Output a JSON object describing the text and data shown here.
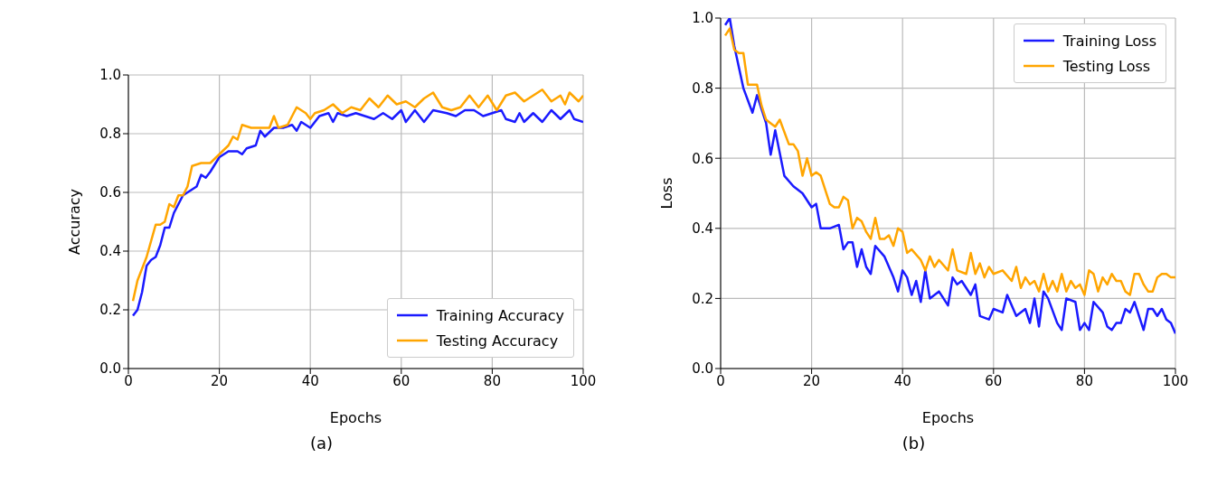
{
  "chart_data": [
    {
      "type": "line",
      "xlabel": "Epochs",
      "ylabel": "Accuracy",
      "xlim": [
        0,
        100
      ],
      "xticks": [
        0,
        20,
        40,
        60,
        80,
        100
      ],
      "ylim": [
        0,
        1
      ],
      "yticks": [
        {
          "value": 0,
          "label": "0.0"
        },
        {
          "value": 0.2,
          "label": "0.2"
        },
        {
          "value": 0.4,
          "label": "0.4"
        },
        {
          "value": 0.6,
          "label": "0.6"
        },
        {
          "value": 0.8,
          "label": "0.8"
        },
        {
          "value": 1,
          "label": "1.0"
        }
      ],
      "grid": true,
      "legend": "bottom right",
      "annotations": [
        "(a)"
      ],
      "series": [
        {
          "name": "Training Accuracy",
          "color": "#1a1aff",
          "x": [
            1,
            2,
            3,
            4,
            5,
            6,
            7,
            8,
            9,
            10,
            12,
            14,
            15,
            16,
            17,
            18,
            20,
            22,
            24,
            25,
            26,
            28,
            29,
            30,
            32,
            34,
            36,
            37,
            38,
            40,
            42,
            44,
            45,
            46,
            48,
            50,
            52,
            54,
            56,
            58,
            60,
            61,
            63,
            65,
            67,
            70,
            72,
            74,
            76,
            78,
            80,
            82,
            83,
            85,
            86,
            87,
            89,
            91,
            93,
            95,
            97,
            98,
            100
          ],
          "values": [
            0.18,
            0.2,
            0.26,
            0.35,
            0.37,
            0.38,
            0.42,
            0.48,
            0.48,
            0.53,
            0.59,
            0.61,
            0.62,
            0.66,
            0.65,
            0.67,
            0.72,
            0.74,
            0.74,
            0.73,
            0.75,
            0.76,
            0.81,
            0.79,
            0.82,
            0.82,
            0.83,
            0.81,
            0.84,
            0.82,
            0.86,
            0.87,
            0.84,
            0.87,
            0.86,
            0.87,
            0.86,
            0.85,
            0.87,
            0.85,
            0.88,
            0.84,
            0.88,
            0.84,
            0.88,
            0.87,
            0.86,
            0.88,
            0.88,
            0.86,
            0.87,
            0.88,
            0.85,
            0.84,
            0.87,
            0.84,
            0.87,
            0.84,
            0.88,
            0.85,
            0.88,
            0.85,
            0.84
          ]
        },
        {
          "name": "Testing Accuracy",
          "color": "#ffa500",
          "x": [
            1,
            2,
            4,
            6,
            7,
            8,
            9,
            10,
            11,
            12,
            13,
            14,
            16,
            18,
            20,
            22,
            23,
            24,
            25,
            27,
            29,
            31,
            32,
            33,
            35,
            37,
            39,
            40,
            41,
            43,
            45,
            47,
            49,
            51,
            53,
            55,
            57,
            59,
            61,
            63,
            65,
            67,
            69,
            71,
            73,
            75,
            77,
            79,
            81,
            83,
            85,
            87,
            89,
            91,
            93,
            95,
            96,
            97,
            99,
            100
          ],
          "values": [
            0.23,
            0.3,
            0.38,
            0.49,
            0.49,
            0.5,
            0.56,
            0.55,
            0.59,
            0.59,
            0.62,
            0.69,
            0.7,
            0.7,
            0.73,
            0.76,
            0.79,
            0.78,
            0.83,
            0.82,
            0.82,
            0.82,
            0.86,
            0.82,
            0.83,
            0.89,
            0.87,
            0.85,
            0.87,
            0.88,
            0.9,
            0.87,
            0.89,
            0.88,
            0.92,
            0.89,
            0.93,
            0.9,
            0.91,
            0.89,
            0.92,
            0.94,
            0.89,
            0.88,
            0.89,
            0.93,
            0.89,
            0.93,
            0.88,
            0.93,
            0.94,
            0.91,
            0.93,
            0.95,
            0.91,
            0.93,
            0.9,
            0.94,
            0.91,
            0.93
          ]
        }
      ]
    },
    {
      "type": "line",
      "xlabel": "Epochs",
      "ylabel": "Loss",
      "xlim": [
        0,
        100
      ],
      "xticks": [
        0,
        20,
        40,
        60,
        80,
        100
      ],
      "ylim": [
        0,
        1
      ],
      "yticks": [
        {
          "value": 0,
          "label": "0.0"
        },
        {
          "value": 0.2,
          "label": "0.2"
        },
        {
          "value": 0.4,
          "label": "0.4"
        },
        {
          "value": 0.6,
          "label": "0.6"
        },
        {
          "value": 0.8,
          "label": "0.8"
        },
        {
          "value": 1,
          "label": "1.0"
        }
      ],
      "grid": true,
      "legend": "top right",
      "annotations": [
        "(b)"
      ],
      "series": [
        {
          "name": "Training Loss",
          "color": "#1a1aff",
          "x": [
            1,
            2,
            3,
            5,
            7,
            8,
            10,
            11,
            12,
            14,
            16,
            18,
            20,
            21,
            22,
            24,
            26,
            27,
            28,
            29,
            30,
            31,
            32,
            33,
            34,
            36,
            38,
            39,
            40,
            41,
            42,
            43,
            44,
            45,
            46,
            48,
            50,
            51,
            52,
            53,
            55,
            56,
            57,
            59,
            60,
            62,
            63,
            65,
            67,
            68,
            69,
            70,
            71,
            72,
            74,
            75,
            76,
            78,
            79,
            80,
            81,
            82,
            84,
            85,
            86,
            87,
            88,
            89,
            90,
            91,
            93,
            94,
            95,
            96,
            97,
            98,
            99,
            100
          ],
          "values": [
            0.98,
            1.0,
            0.92,
            0.8,
            0.73,
            0.78,
            0.7,
            0.61,
            0.68,
            0.55,
            0.52,
            0.5,
            0.46,
            0.47,
            0.4,
            0.4,
            0.41,
            0.34,
            0.36,
            0.36,
            0.29,
            0.34,
            0.29,
            0.27,
            0.35,
            0.32,
            0.26,
            0.22,
            0.28,
            0.26,
            0.21,
            0.25,
            0.19,
            0.28,
            0.2,
            0.22,
            0.18,
            0.26,
            0.24,
            0.25,
            0.21,
            0.24,
            0.15,
            0.14,
            0.17,
            0.16,
            0.21,
            0.15,
            0.17,
            0.13,
            0.2,
            0.12,
            0.22,
            0.2,
            0.13,
            0.11,
            0.2,
            0.19,
            0.11,
            0.13,
            0.11,
            0.19,
            0.16,
            0.12,
            0.11,
            0.13,
            0.13,
            0.17,
            0.16,
            0.19,
            0.11,
            0.17,
            0.17,
            0.15,
            0.17,
            0.14,
            0.13,
            0.1
          ]
        },
        {
          "name": "Testing Loss",
          "color": "#ffa500",
          "x": [
            1,
            2,
            3,
            4,
            5,
            6,
            8,
            9,
            10,
            11,
            12,
            13,
            15,
            16,
            17,
            18,
            19,
            20,
            21,
            22,
            24,
            25,
            26,
            27,
            28,
            29,
            30,
            31,
            32,
            33,
            34,
            35,
            36,
            37,
            38,
            39,
            40,
            41,
            42,
            44,
            45,
            46,
            47,
            48,
            50,
            51,
            52,
            54,
            55,
            56,
            57,
            58,
            59,
            60,
            62,
            64,
            65,
            66,
            67,
            68,
            69,
            70,
            71,
            72,
            73,
            74,
            75,
            76,
            77,
            78,
            79,
            80,
            81,
            82,
            83,
            84,
            85,
            86,
            87,
            88,
            89,
            90,
            91,
            92,
            93,
            94,
            95,
            96,
            97,
            98,
            99,
            100
          ],
          "values": [
            0.95,
            0.97,
            0.91,
            0.9,
            0.9,
            0.81,
            0.81,
            0.75,
            0.71,
            0.7,
            0.69,
            0.71,
            0.64,
            0.64,
            0.62,
            0.55,
            0.6,
            0.55,
            0.56,
            0.55,
            0.47,
            0.46,
            0.46,
            0.49,
            0.48,
            0.4,
            0.43,
            0.42,
            0.39,
            0.37,
            0.43,
            0.37,
            0.37,
            0.38,
            0.35,
            0.4,
            0.39,
            0.33,
            0.34,
            0.31,
            0.28,
            0.32,
            0.29,
            0.31,
            0.28,
            0.34,
            0.28,
            0.27,
            0.33,
            0.27,
            0.3,
            0.26,
            0.29,
            0.27,
            0.28,
            0.25,
            0.29,
            0.23,
            0.26,
            0.24,
            0.25,
            0.22,
            0.27,
            0.22,
            0.25,
            0.22,
            0.27,
            0.22,
            0.25,
            0.23,
            0.24,
            0.21,
            0.28,
            0.27,
            0.22,
            0.26,
            0.24,
            0.27,
            0.25,
            0.25,
            0.22,
            0.21,
            0.27,
            0.27,
            0.24,
            0.22,
            0.22,
            0.26,
            0.27,
            0.27,
            0.26,
            0.26
          ]
        }
      ]
    }
  ]
}
